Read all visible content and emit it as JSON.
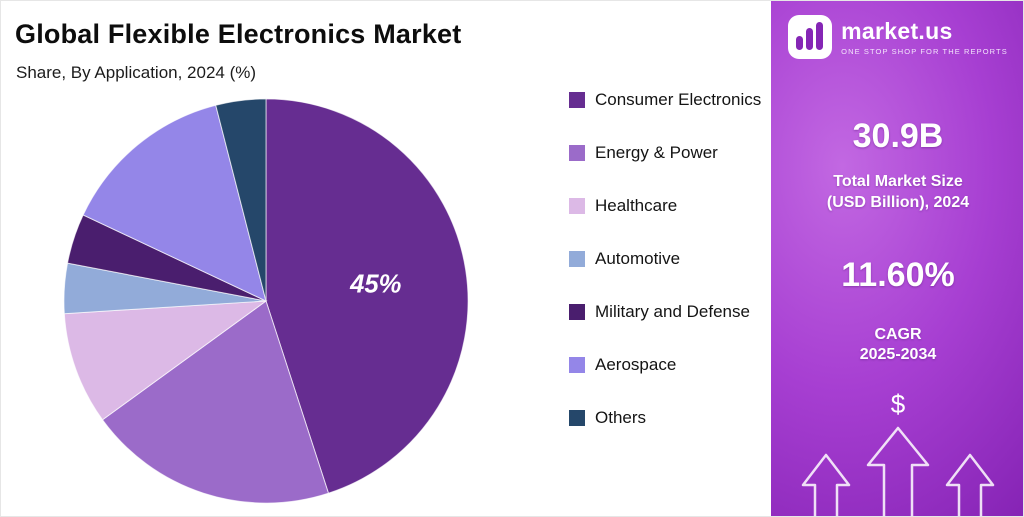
{
  "title": "Global Flexible Electronics Market",
  "subtitle": "Share, By Application, 2024 (%)",
  "chart_data": {
    "type": "pie",
    "title": "Global Flexible Electronics Market",
    "subtitle": "Share, By Application, 2024 (%)",
    "legend_position": "right",
    "start_angle_deg": 0,
    "direction": "clockwise",
    "data_labels_shown": [
      "45%"
    ],
    "slices": [
      {
        "label": "Consumer Electronics",
        "value": 45,
        "color": "#662D91",
        "data_label": "45%"
      },
      {
        "label": "Energy & Power",
        "value": 20,
        "color": "#9B6BC9",
        "data_label": ""
      },
      {
        "label": "Healthcare",
        "value": 9,
        "color": "#DCB9E6",
        "data_label": ""
      },
      {
        "label": "Automotive",
        "value": 4,
        "color": "#92ABD9",
        "data_label": ""
      },
      {
        "label": "Military and Defense",
        "value": 4,
        "color": "#4A1E6E",
        "data_label": ""
      },
      {
        "label": "Aerospace",
        "value": 14,
        "color": "#9486E8",
        "data_label": ""
      },
      {
        "label": "Others",
        "value": 4,
        "color": "#25476A",
        "data_label": ""
      }
    ]
  },
  "sidebar": {
    "logo_text": "market.us",
    "logo_tagline": "ONE STOP SHOP FOR THE REPORTS",
    "market_size_value": "30.9B",
    "market_size_label_line1": "Total Market Size",
    "market_size_label_line2": "(USD Billion), 2024",
    "cagr_value": "11.60%",
    "cagr_label_line1": "CAGR",
    "cagr_label_line2": "2025-2034",
    "dollar_symbol": "$",
    "colors": {
      "panel_gradient_light": "#C268E2",
      "panel_gradient_dark": "#7E1DAE",
      "logo_bar_purple": "#8526B5",
      "text": "#FFFFFF"
    }
  }
}
